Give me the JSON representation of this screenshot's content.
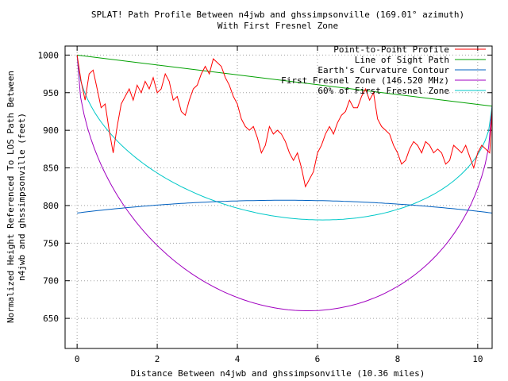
{
  "chart_data": {
    "type": "line",
    "title": "SPLAT! Path Profile Between n4jwb and ghssimpsonville (169.01° azimuth)",
    "subtitle": "With First Fresnel Zone",
    "xlabel": "Distance Between n4jwb and ghssimpsonville (10.36 miles)",
    "ylabel_line1": "Normalized Height Referenced To LOS Path Between",
    "ylabel_line2": "n4jwb and ghssimpsonville (feet)",
    "xlim": [
      -0.3,
      10.36
    ],
    "ylim": [
      610,
      1012
    ],
    "xticks": [
      0,
      2,
      4,
      6,
      8,
      10
    ],
    "yticks": [
      650,
      700,
      750,
      800,
      850,
      900,
      950,
      1000
    ],
    "grid": true,
    "legend_position": "top-right",
    "series": [
      {
        "name": "Point-to-Point Profile",
        "color": "#ff0000",
        "x": [
          0,
          0.1,
          0.2,
          0.3,
          0.4,
          0.5,
          0.6,
          0.7,
          0.8,
          0.9,
          1.0,
          1.1,
          1.2,
          1.3,
          1.4,
          1.5,
          1.6,
          1.7,
          1.8,
          1.9,
          2.0,
          2.1,
          2.2,
          2.3,
          2.4,
          2.5,
          2.6,
          2.7,
          2.8,
          2.9,
          3.0,
          3.1,
          3.2,
          3.3,
          3.4,
          3.5,
          3.6,
          3.7,
          3.8,
          3.9,
          4.0,
          4.1,
          4.2,
          4.3,
          4.4,
          4.5,
          4.6,
          4.7,
          4.8,
          4.9,
          5.0,
          5.1,
          5.2,
          5.3,
          5.4,
          5.5,
          5.6,
          5.7,
          5.8,
          5.9,
          6.0,
          6.1,
          6.2,
          6.3,
          6.4,
          6.5,
          6.6,
          6.7,
          6.8,
          6.9,
          7.0,
          7.1,
          7.2,
          7.3,
          7.4,
          7.5,
          7.6,
          7.7,
          7.8,
          7.9,
          8.0,
          8.1,
          8.2,
          8.3,
          8.4,
          8.5,
          8.6,
          8.7,
          8.8,
          8.9,
          9.0,
          9.1,
          9.2,
          9.3,
          9.4,
          9.5,
          9.6,
          9.7,
          9.8,
          9.9,
          10.0,
          10.1,
          10.2,
          10.3,
          10.36
        ],
        "y": [
          1000,
          965,
          940,
          975,
          980,
          955,
          930,
          935,
          900,
          870,
          905,
          935,
          945,
          955,
          940,
          960,
          950,
          965,
          955,
          970,
          950,
          955,
          975,
          965,
          940,
          945,
          925,
          920,
          940,
          955,
          960,
          975,
          985,
          975,
          995,
          990,
          985,
          970,
          960,
          945,
          935,
          915,
          905,
          900,
          905,
          890,
          870,
          880,
          905,
          895,
          900,
          895,
          885,
          870,
          860,
          870,
          850,
          825,
          835,
          845,
          870,
          880,
          895,
          905,
          895,
          910,
          920,
          925,
          940,
          930,
          930,
          945,
          955,
          940,
          950,
          915,
          905,
          900,
          895,
          880,
          870,
          855,
          860,
          875,
          885,
          880,
          870,
          885,
          880,
          870,
          875,
          870,
          855,
          860,
          880,
          875,
          870,
          880,
          865,
          850,
          870,
          880,
          875,
          870,
          930
        ]
      },
      {
        "name": "Line of Sight Path",
        "color": "#00a000",
        "x": [
          0,
          10.36
        ],
        "y": [
          1000,
          932
        ]
      },
      {
        "name": "Earth's Curvature Contour",
        "color": "#0060c0",
        "curve": "curvature",
        "endpoint_value": 790,
        "peak_value": 807
      },
      {
        "name": "First Fresnel Zone (146.520 MHz)",
        "color": "#a000c0",
        "curve": "fresnel",
        "fraction": 1.0,
        "radius_at_midpoint_feet": 304
      },
      {
        "name": "60% of First Fresnel Zone",
        "color": "#00c8c8",
        "curve": "fresnel",
        "fraction": 0.6,
        "radius_at_midpoint_feet": 182
      }
    ]
  }
}
